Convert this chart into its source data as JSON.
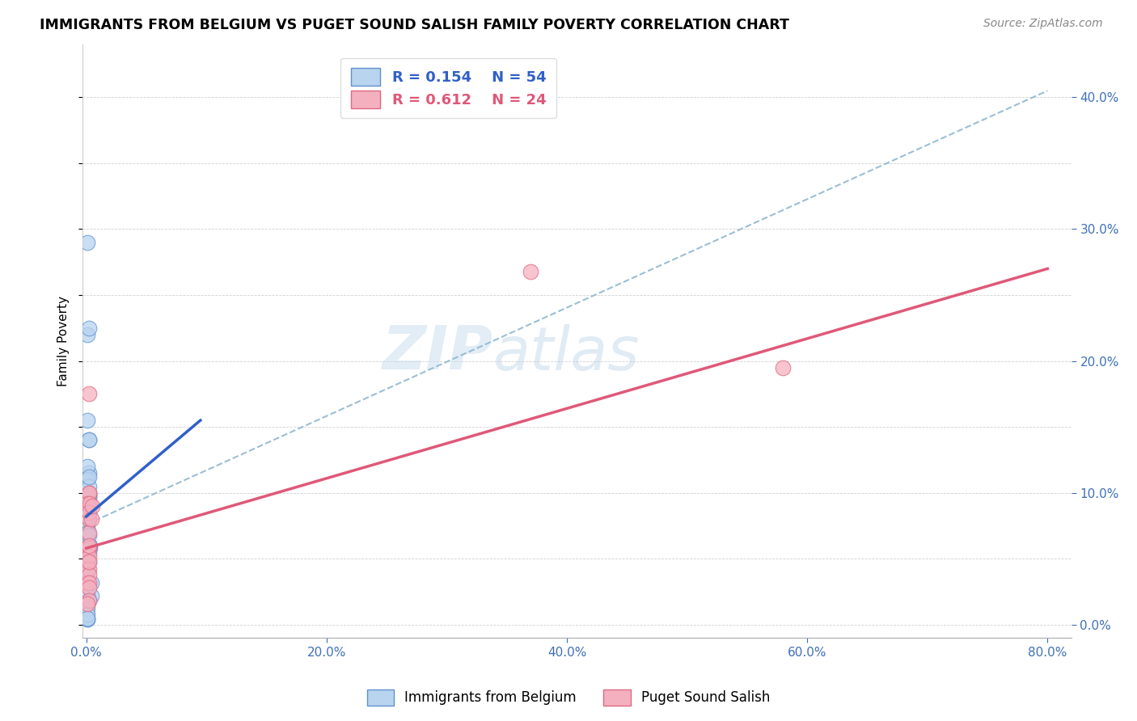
{
  "title": "IMMIGRANTS FROM BELGIUM VS PUGET SOUND SALISH FAMILY POVERTY CORRELATION CHART",
  "source": "Source: ZipAtlas.com",
  "ylabel": "Family Poverty",
  "xlim": [
    -0.003,
    0.82
  ],
  "ylim": [
    -0.01,
    0.44
  ],
  "xticks": [
    0.0,
    0.2,
    0.4,
    0.6,
    0.8
  ],
  "yticks": [
    0.0,
    0.1,
    0.2,
    0.3,
    0.4
  ],
  "blue_R": 0.154,
  "blue_N": 54,
  "pink_R": 0.612,
  "pink_N": 24,
  "blue_color": "#b8d4ee",
  "pink_color": "#f5b0c0",
  "blue_edge_color": "#6090d0",
  "pink_edge_color": "#e06880",
  "blue_line_color": "#3060c8",
  "pink_line_color": "#e05878",
  "dashed_line_color": "#90b8d0",
  "watermark_text": "ZIPatlas",
  "blue_scatter_x": [
    0.001,
    0.002,
    0.001,
    0.001,
    0.002,
    0.002,
    0.001,
    0.002,
    0.001,
    0.001,
    0.002,
    0.001,
    0.001,
    0.001,
    0.002,
    0.001,
    0.002,
    0.002,
    0.001,
    0.001,
    0.001,
    0.001,
    0.002,
    0.001,
    0.002,
    0.001,
    0.002,
    0.001,
    0.001,
    0.002,
    0.001,
    0.001,
    0.003,
    0.001,
    0.001,
    0.003,
    0.002,
    0.002,
    0.001,
    0.001,
    0.002,
    0.002,
    0.001,
    0.004,
    0.004,
    0.002,
    0.002,
    0.001,
    0.001,
    0.001,
    0.002,
    0.001,
    0.001,
    0.001
  ],
  "blue_scatter_y": [
    0.29,
    0.14,
    0.155,
    0.22,
    0.225,
    0.115,
    0.12,
    0.1,
    0.11,
    0.095,
    0.105,
    0.095,
    0.088,
    0.095,
    0.098,
    0.082,
    0.09,
    0.098,
    0.09,
    0.082,
    0.072,
    0.075,
    0.085,
    0.092,
    0.08,
    0.07,
    0.09,
    0.078,
    0.088,
    0.096,
    0.082,
    0.07,
    0.058,
    0.048,
    0.04,
    0.06,
    0.055,
    0.048,
    0.04,
    0.055,
    0.06,
    0.068,
    0.042,
    0.032,
    0.022,
    0.112,
    0.14,
    0.022,
    0.004,
    0.004,
    0.018,
    0.012,
    0.008,
    0.005
  ],
  "pink_scatter_x": [
    0.002,
    0.002,
    0.002,
    0.002,
    0.001,
    0.003,
    0.002,
    0.002,
    0.002,
    0.001,
    0.004,
    0.005,
    0.002,
    0.002,
    0.001,
    0.002,
    0.002,
    0.002,
    0.37,
    0.58,
    0.002,
    0.002,
    0.002,
    0.001
  ],
  "pink_scatter_y": [
    0.175,
    0.1,
    0.08,
    0.1,
    0.092,
    0.092,
    0.085,
    0.07,
    0.058,
    0.048,
    0.08,
    0.09,
    0.052,
    0.042,
    0.032,
    0.038,
    0.048,
    0.06,
    0.268,
    0.195,
    0.032,
    0.028,
    0.018,
    0.016
  ],
  "blue_line_x": [
    0.0,
    0.095
  ],
  "blue_line_y": [
    0.082,
    0.155
  ],
  "pink_line_x": [
    0.0,
    0.8
  ],
  "pink_line_y": [
    0.058,
    0.27
  ],
  "dashed_line_x": [
    0.0,
    0.8
  ],
  "dashed_line_y": [
    0.076,
    0.405
  ],
  "legend_labels": [
    "Immigrants from Belgium",
    "Puget Sound Salish"
  ]
}
